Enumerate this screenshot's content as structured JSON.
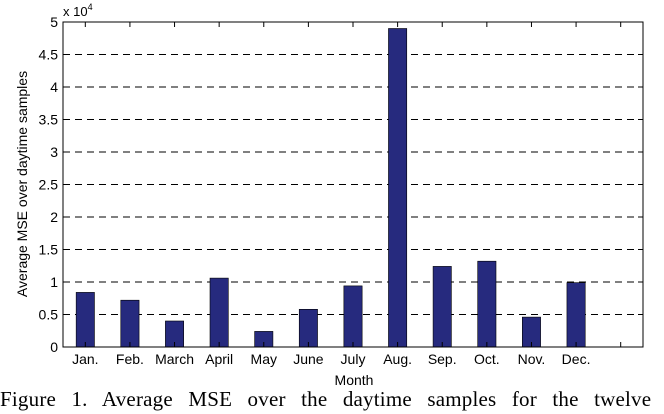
{
  "chart_data": {
    "type": "bar",
    "categories": [
      "Jan.",
      "Feb.",
      "March",
      "April",
      "May",
      "June",
      "July",
      "Aug.",
      "Sep.",
      "Oct.",
      "Nov.",
      "Dec."
    ],
    "values": [
      8400,
      7200,
      4000,
      10600,
      2400,
      5800,
      9400,
      49000,
      12400,
      13200,
      4600,
      9900
    ],
    "xlabel": "Month",
    "ylabel": "Average MSE over daytime samples",
    "y_multiplier_label": "x 10",
    "y_multiplier_exponent": "4",
    "ylim": [
      0,
      50000
    ],
    "xlim": [
      0.5,
      13.5
    ],
    "yticks": [
      "0",
      "0.5",
      "1",
      "1.5",
      "2",
      "2.5",
      "3",
      "3.5",
      "4",
      "4.5",
      "5"
    ],
    "grid": "horizontal dashed",
    "bar_color": "#262a7e"
  },
  "caption": "Figure 1.   Average MSE over the daytime samples for the twelve"
}
